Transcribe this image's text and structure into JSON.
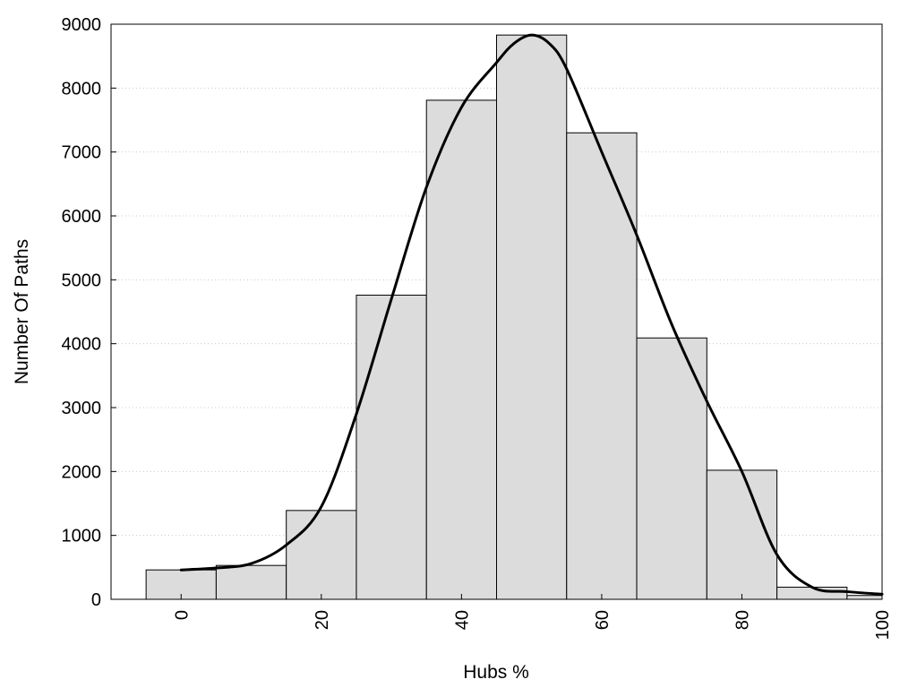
{
  "chart_data": {
    "type": "bar",
    "title": "",
    "xlabel": "Hubs %",
    "ylabel": "Number Of Paths",
    "xlim": [
      -10,
      100
    ],
    "ylim": [
      0,
      9000
    ],
    "x_ticks": [
      0,
      20,
      40,
      60,
      80,
      100
    ],
    "y_ticks": [
      0,
      1000,
      2000,
      3000,
      4000,
      5000,
      6000,
      7000,
      8000,
      9000
    ],
    "grid": "horizontal-dotted",
    "legend": "none",
    "bin_width": 10,
    "bins": [
      {
        "x": 0,
        "value": 460
      },
      {
        "x": 10,
        "value": 530
      },
      {
        "x": 20,
        "value": 1390
      },
      {
        "x": 30,
        "value": 4760
      },
      {
        "x": 40,
        "value": 7810
      },
      {
        "x": 50,
        "value": 8830
      },
      {
        "x": 60,
        "value": 7300
      },
      {
        "x": 70,
        "value": 4090
      },
      {
        "x": 80,
        "value": 2020
      },
      {
        "x": 90,
        "value": 190
      },
      {
        "x": 100,
        "value": 60
      }
    ],
    "curve": {
      "type": "line",
      "x": [
        0,
        5,
        10,
        15,
        20,
        25,
        30,
        35,
        40,
        45,
        47.5,
        50,
        52.5,
        55,
        60,
        65,
        70,
        75,
        80,
        85,
        90,
        95,
        100
      ],
      "y": [
        460,
        490,
        560,
        850,
        1450,
        2900,
        4700,
        6450,
        7700,
        8400,
        8700,
        8830,
        8700,
        8300,
        7000,
        5700,
        4300,
        3100,
        2000,
        700,
        190,
        120,
        80
      ]
    },
    "colors": {
      "bar_fill": "#dcdcdc",
      "bar_stroke": "#000000",
      "curve": "#000000",
      "grid": "#c8c8c8"
    }
  }
}
